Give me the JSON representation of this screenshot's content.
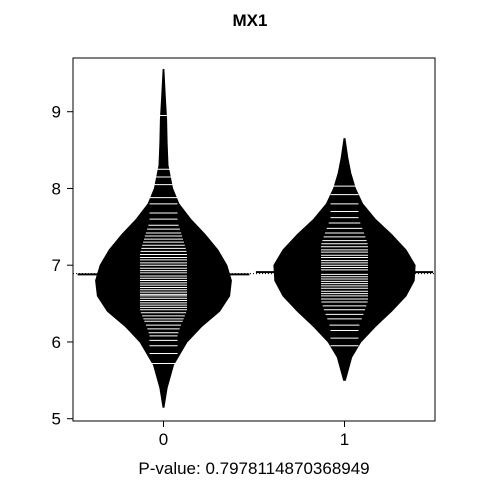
{
  "chart_data": {
    "type": "beanplot",
    "title": "MX1",
    "xlabel": "P-value: 0.7978114870368949",
    "ylabel": "",
    "x_ticks": [
      "0",
      "1"
    ],
    "y_ticks": [
      5,
      6,
      7,
      8,
      9
    ],
    "ylim": [
      4.97,
      9.7
    ],
    "xlim": [
      -0.5,
      1.5
    ],
    "overall_mean": 6.89,
    "series": [
      {
        "category": "0",
        "mean": 6.88,
        "range": [
          5.15,
          9.55
        ],
        "density": [
          [
            5.15,
            0.003
          ],
          [
            5.4,
            0.02
          ],
          [
            5.7,
            0.055
          ],
          [
            6.0,
            0.13
          ],
          [
            6.2,
            0.21
          ],
          [
            6.4,
            0.31
          ],
          [
            6.6,
            0.365
          ],
          [
            6.8,
            0.375
          ],
          [
            7.0,
            0.35
          ],
          [
            7.2,
            0.3
          ],
          [
            7.4,
            0.23
          ],
          [
            7.6,
            0.15
          ],
          [
            7.8,
            0.085
          ],
          [
            8.0,
            0.05
          ],
          [
            8.3,
            0.025
          ],
          [
            8.6,
            0.02
          ],
          [
            8.9,
            0.017
          ],
          [
            9.2,
            0.01
          ],
          [
            9.55,
            0.002
          ]
        ],
        "observations": [
          5.72,
          5.85,
          5.95,
          6.02,
          6.08,
          6.12,
          6.17,
          6.22,
          6.27,
          6.3,
          6.34,
          6.38,
          6.42,
          6.45,
          6.48,
          6.51,
          6.54,
          6.57,
          6.6,
          6.62,
          6.65,
          6.68,
          6.71,
          6.74,
          6.77,
          6.8,
          6.83,
          6.86,
          6.9,
          6.93,
          6.96,
          7.0,
          7.03,
          7.07,
          7.1,
          7.14,
          7.18,
          7.22,
          7.26,
          7.3,
          7.34,
          7.38,
          7.42,
          7.47,
          7.52,
          7.6,
          7.68,
          7.8,
          7.88,
          8.05,
          8.15,
          8.25,
          8.95
        ]
      },
      {
        "category": "1",
        "mean": 6.91,
        "range": [
          5.5,
          8.65
        ],
        "density": [
          [
            5.5,
            0.005
          ],
          [
            5.8,
            0.04
          ],
          [
            6.0,
            0.09
          ],
          [
            6.2,
            0.17
          ],
          [
            6.4,
            0.26
          ],
          [
            6.6,
            0.34
          ],
          [
            6.8,
            0.385
          ],
          [
            7.0,
            0.39
          ],
          [
            7.2,
            0.34
          ],
          [
            7.4,
            0.26
          ],
          [
            7.6,
            0.17
          ],
          [
            7.8,
            0.1
          ],
          [
            8.0,
            0.06
          ],
          [
            8.2,
            0.035
          ],
          [
            8.4,
            0.018
          ],
          [
            8.65,
            0.003
          ]
        ],
        "observations": [
          5.95,
          6.05,
          6.15,
          6.22,
          6.3,
          6.36,
          6.42,
          6.47,
          6.52,
          6.56,
          6.6,
          6.63,
          6.66,
          6.7,
          6.73,
          6.76,
          6.79,
          6.82,
          6.85,
          6.88,
          6.91,
          6.94,
          6.97,
          7.0,
          7.03,
          7.06,
          7.1,
          7.13,
          7.17,
          7.2,
          7.24,
          7.28,
          7.32,
          7.37,
          7.42,
          7.48,
          7.55,
          7.62,
          7.7,
          7.8,
          7.92,
          8.03
        ]
      }
    ],
    "colors": {
      "bean": "#000000",
      "line": "#ffffff",
      "axis": "#000000"
    }
  }
}
